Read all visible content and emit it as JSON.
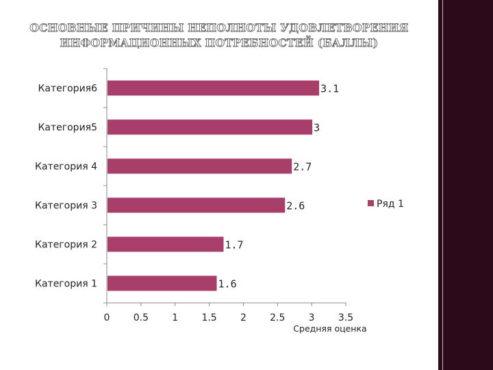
{
  "title": "ОСНОВНЫЕ ПРИЧИНЫ НЕПОЛНОТЫ УДОВЛЕТВОРЕНИЯ ИНФОРМАЦИОННЫХ ПОТРЕБНОСТЕЙ (БАЛЛЫ)",
  "colors": {
    "bar": "#a83f6a",
    "axis": "#888888",
    "side_panel": "#2c0a1a"
  },
  "chart_data": {
    "type": "bar",
    "orientation": "horizontal",
    "categories": [
      "Категория 1",
      "Категория 2",
      "Категория 3",
      "Категория 4",
      "Категория5",
      "Категория6"
    ],
    "series": [
      {
        "name": "Ряд 1",
        "values": [
          1.6,
          1.7,
          2.6,
          2.7,
          3,
          3.1
        ],
        "data_labels": [
          "1.6",
          "1.7",
          "2.6",
          "2.7",
          "3",
          "3.1"
        ]
      }
    ],
    "xlabel": "Средняя оценка",
    "ylabel": "",
    "xlim": [
      0,
      3.5
    ],
    "x_ticks": [
      "0",
      "0.5",
      "1",
      "1.5",
      "2",
      "2.5",
      "3",
      "3.5"
    ],
    "grid": false,
    "legend_position": "right"
  }
}
